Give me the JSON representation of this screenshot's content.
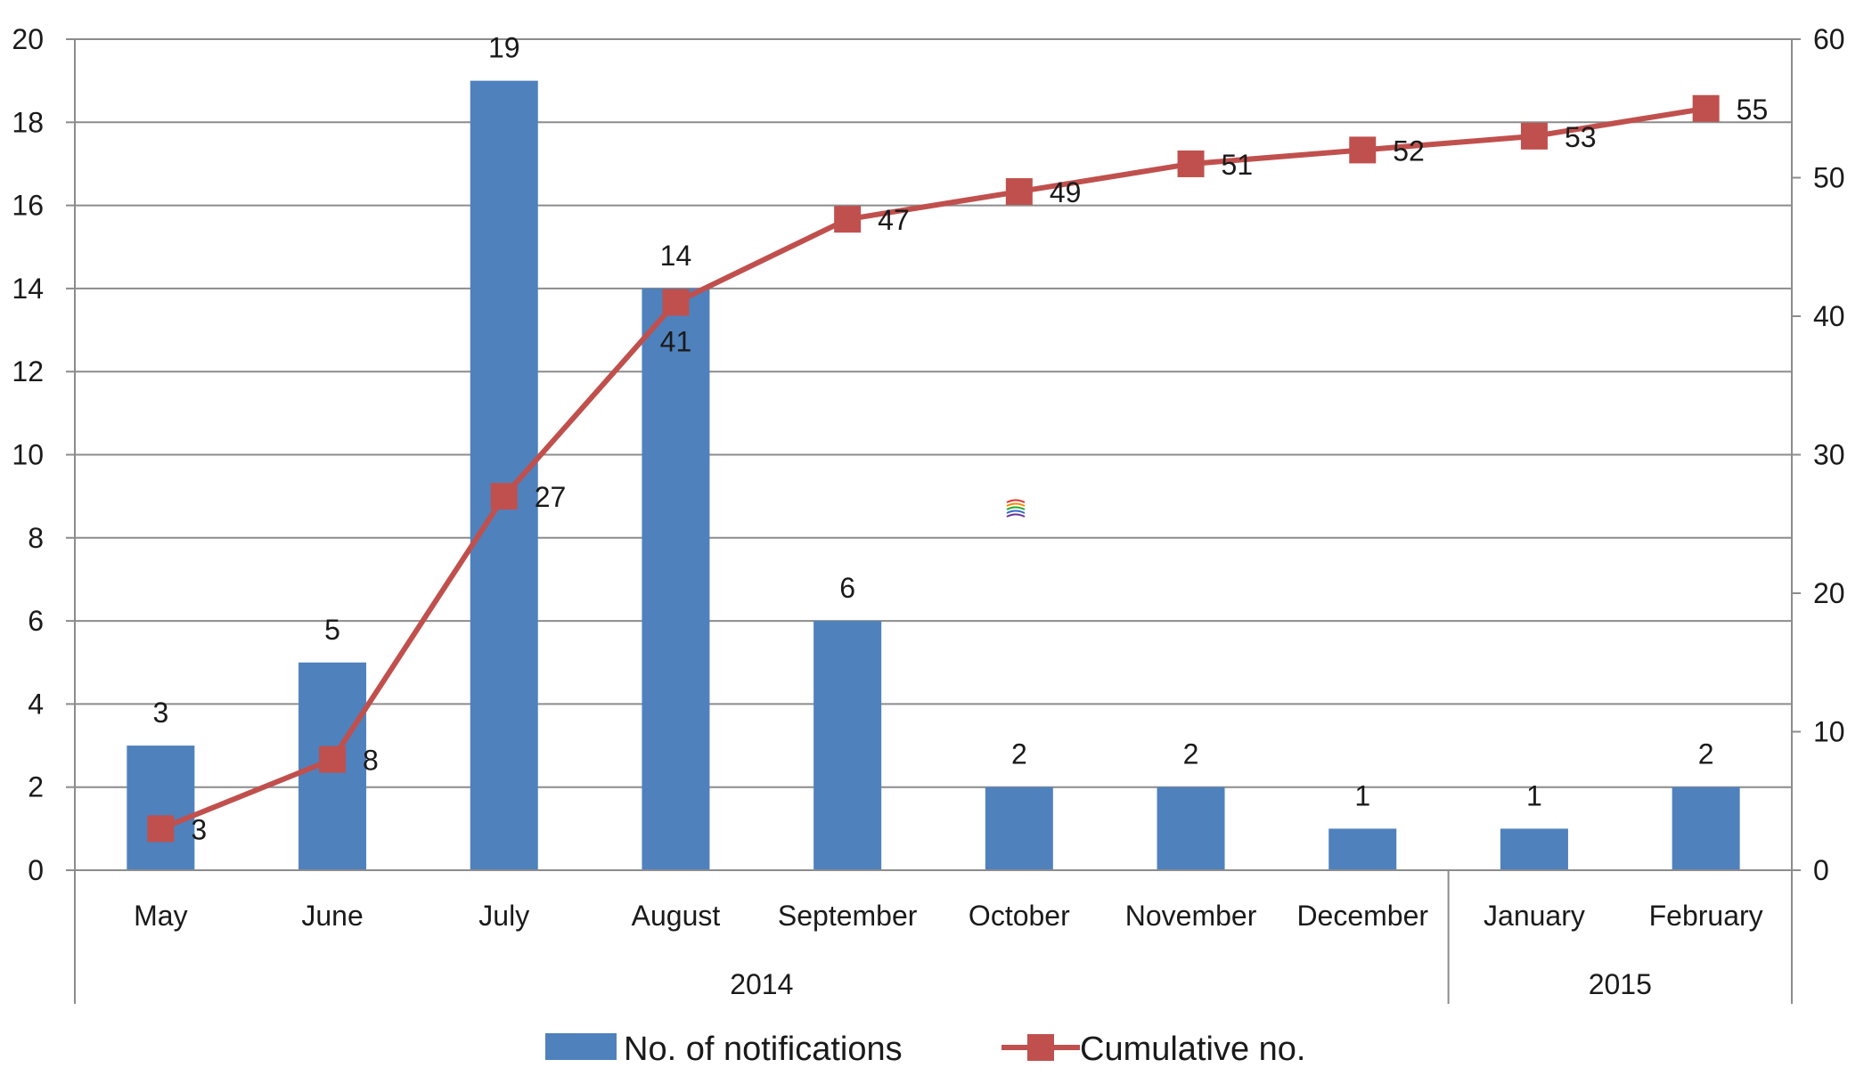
{
  "chart_data": {
    "type": "bar",
    "categories": [
      "May",
      "June",
      "July",
      "August",
      "September",
      "October",
      "November",
      "December",
      "January",
      "February"
    ],
    "groups": [
      {
        "label": "2014",
        "span": 8
      },
      {
        "label": "2015",
        "span": 2
      }
    ],
    "series": [
      {
        "name": "No. of notifications",
        "type": "bar",
        "axis": "left",
        "values": [
          3,
          5,
          19,
          14,
          6,
          2,
          2,
          1,
          1,
          2
        ]
      },
      {
        "name": "Cumulative no.",
        "type": "line",
        "axis": "right",
        "values": [
          3,
          8,
          27,
          41,
          47,
          49,
          51,
          52,
          53,
          55
        ]
      }
    ],
    "ylim": [
      0,
      20
    ],
    "y2lim": [
      0,
      60
    ],
    "yticks": [
      0,
      2,
      4,
      6,
      8,
      10,
      12,
      14,
      16,
      18,
      20
    ],
    "y2ticks": [
      0,
      10,
      20,
      30,
      40,
      50,
      60
    ],
    "grid": true,
    "legend_position": "bottom",
    "colors": {
      "bar": "#4f81bd",
      "line": "#c0504d",
      "grid": "#8c8c8c",
      "text": "#1a1a1a"
    }
  }
}
